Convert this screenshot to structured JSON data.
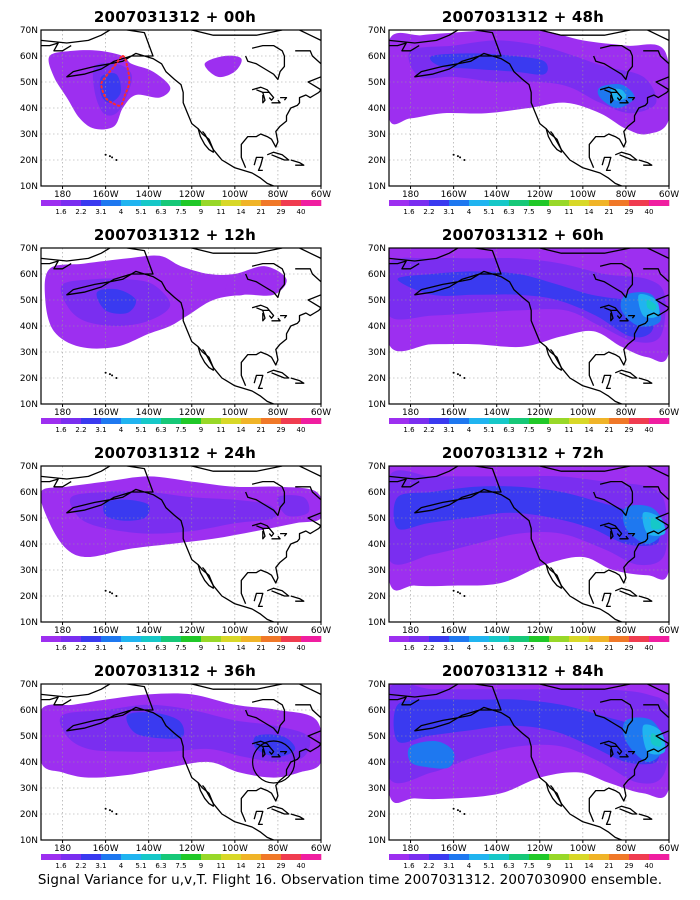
{
  "panels": [
    {
      "title": "2007031312 + 00h",
      "level": 0,
      "marker": "dotted-region"
    },
    {
      "title": "2007031312 + 48h",
      "level": 4
    },
    {
      "title": "2007031312 + 12h",
      "level": 1
    },
    {
      "title": "2007031312 + 60h",
      "level": 5
    },
    {
      "title": "2007031312 + 24h",
      "level": 2
    },
    {
      "title": "2007031312 + 72h",
      "level": 6
    },
    {
      "title": "2007031312 + 36h",
      "level": 3,
      "marker": "circle"
    },
    {
      "title": "2007031312 + 84h",
      "level": 7
    }
  ],
  "lat_labels": [
    "70N",
    "60N",
    "50N",
    "40N",
    "30N",
    "20N",
    "10N"
  ],
  "lon_labels": [
    "180",
    "160W",
    "140W",
    "120W",
    "100W",
    "80W",
    "60W"
  ],
  "colorbar": {
    "labels": [
      "1.6",
      "2.2",
      "3.1",
      "4",
      "5.1",
      "6.3",
      "7.5",
      "9",
      "11",
      "14",
      "21",
      "29",
      "40"
    ],
    "colors": [
      "#9d2ff0",
      "#7a2ef0",
      "#3a3af0",
      "#1e78f0",
      "#20b4f0",
      "#16c8c8",
      "#16c878",
      "#20c828",
      "#98d828",
      "#d8d828",
      "#f0b428",
      "#f07828",
      "#f03c50",
      "#f01ea0"
    ]
  },
  "caption": "Signal Variance for u,v,T. Flight 16. Observation time 2007031312. 2007030900 ensemble."
}
